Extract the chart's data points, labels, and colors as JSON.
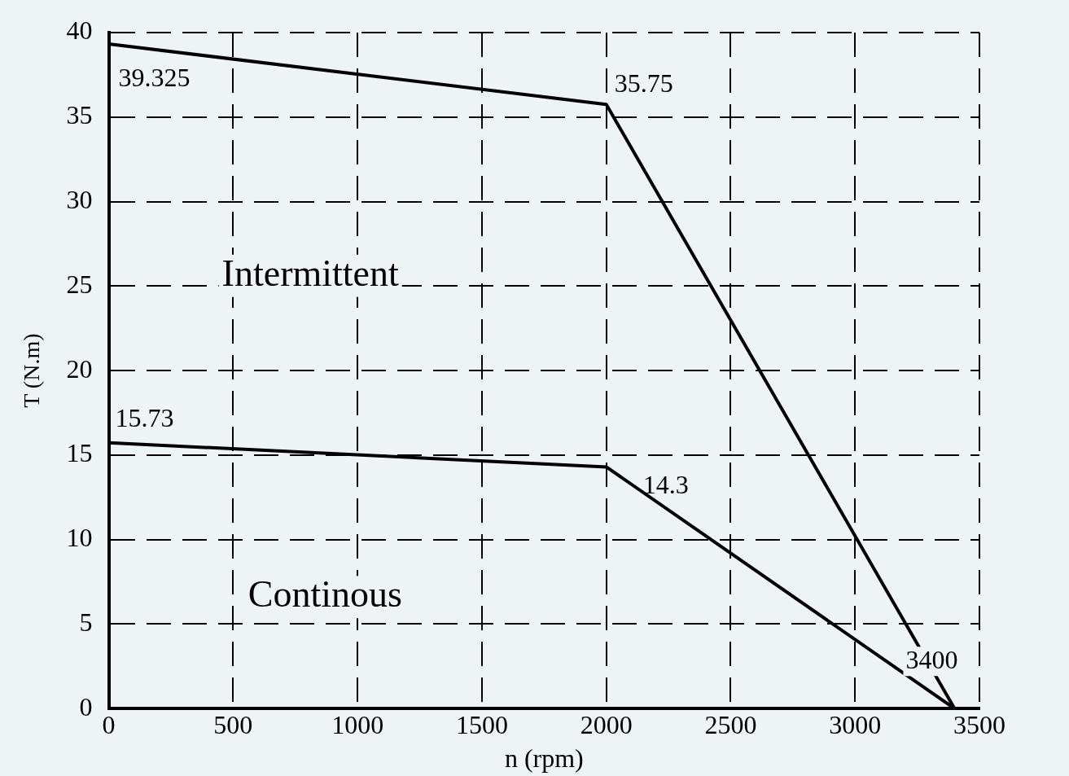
{
  "chart_data": {
    "type": "line",
    "xlabel": "n (rpm)",
    "ylabel": "T (N.m)",
    "series": [
      {
        "color": "#000000",
        "x": [
          0,
          2000,
          3400
        ],
        "values": [
          39.325,
          35.75,
          0
        ]
      },
      {
        "color": "#000000",
        "x": [
          0,
          2000,
          3400
        ],
        "values": [
          15.73,
          14.3,
          0
        ]
      }
    ],
    "xlim": [
      0,
      3500
    ],
    "xticks": [
      0,
      500,
      1000,
      1500,
      2000,
      2500,
      3000,
      3500
    ],
    "ylim": [
      0,
      40
    ],
    "yticks": [
      0,
      5,
      10,
      15,
      20,
      25,
      30,
      35,
      40
    ],
    "grid": true,
    "legend": false,
    "marker": "none",
    "line_style": "solid",
    "annotations": [
      {
        "text": "39.325",
        "x": 0,
        "y": 39.325
      },
      {
        "text": "35.75",
        "x": 2000,
        "y": 35.75
      },
      {
        "text": "15.73",
        "x": 0,
        "y": 15.73
      },
      {
        "text": "14.3",
        "x": 2000,
        "y": 14.3
      },
      {
        "text": "3400",
        "x": 3400,
        "y": 0
      },
      "Intermittent",
      "Continous"
    ]
  }
}
